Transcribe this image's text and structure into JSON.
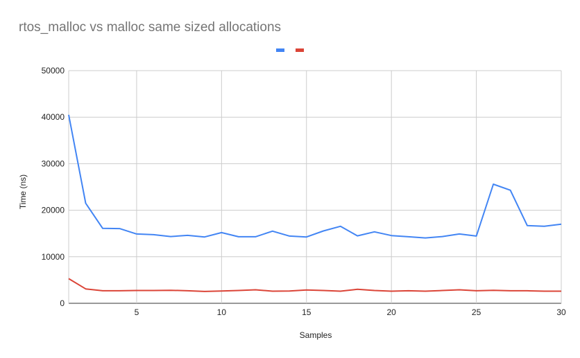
{
  "chart_data": {
    "type": "line",
    "title": "rtos_malloc vs malloc same sized allocations",
    "xlabel": "Samples",
    "ylabel": "Time (ns)",
    "xlim": [
      1,
      30
    ],
    "ylim": [
      0,
      50000
    ],
    "xticks": [
      "5",
      "10",
      "15",
      "20",
      "25",
      "30"
    ],
    "yticks": [
      "0",
      "10000",
      "20000",
      "30000",
      "40000",
      "50000"
    ],
    "grid": true,
    "legend_position": "top",
    "x": [
      1,
      2,
      3,
      4,
      5,
      6,
      7,
      8,
      9,
      10,
      11,
      12,
      13,
      14,
      15,
      16,
      17,
      18,
      19,
      20,
      21,
      22,
      23,
      24,
      25,
      26,
      27,
      28,
      29,
      30
    ],
    "series": [
      {
        "color": "#4285f4",
        "values": [
          40500,
          21500,
          16100,
          16050,
          14900,
          14750,
          14350,
          14600,
          14250,
          15200,
          14300,
          14300,
          15500,
          14450,
          14250,
          15550,
          16550,
          14500,
          15350,
          14550,
          14300,
          14050,
          14350,
          14900,
          14450,
          25600,
          24300,
          16700,
          16550,
          17000
        ]
      },
      {
        "color": "#db4437",
        "values": [
          5300,
          3100,
          2700,
          2700,
          2750,
          2750,
          2800,
          2700,
          2550,
          2650,
          2750,
          2900,
          2600,
          2650,
          2850,
          2750,
          2600,
          3000,
          2750,
          2600,
          2700,
          2600,
          2750,
          2900,
          2700,
          2800,
          2700,
          2700,
          2600,
          2600
        ]
      }
    ]
  }
}
